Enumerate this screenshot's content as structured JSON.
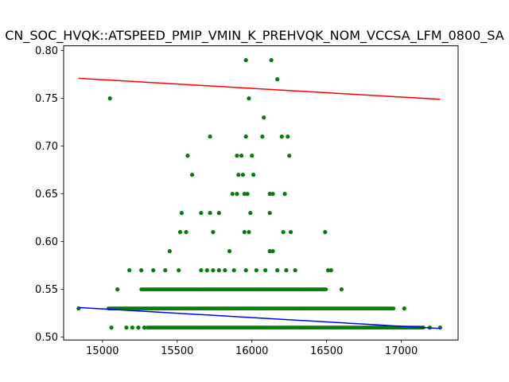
{
  "chart_data": {
    "type": "scatter",
    "title": "CN_SOC_HVQK::ATSPEED_PMIP_VMIN_K_PREHVQK_NOM_VCCSA_LFM_0800_SA",
    "xlabel": "",
    "ylabel": "",
    "xlim": [
      14740,
      17380
    ],
    "ylim": [
      0.497,
      0.805
    ],
    "xticks": [
      15000,
      15500,
      16000,
      16500,
      17000
    ],
    "yticks": [
      0.5,
      0.55,
      0.6,
      0.65,
      0.7,
      0.75,
      0.8
    ],
    "ytick_labels": [
      "0.50",
      "0.55",
      "0.60",
      "0.65",
      "0.70",
      "0.75",
      "0.80"
    ],
    "grid": false,
    "colors": {
      "points": "#008000",
      "upper_line": "#ff0000",
      "lower_line": "#0000ff"
    },
    "points": [
      [
        15960,
        0.79
      ],
      [
        16130,
        0.79
      ],
      [
        16170,
        0.77
      ],
      [
        15050,
        0.75
      ],
      [
        15980,
        0.75
      ],
      [
        16080,
        0.73
      ],
      [
        15720,
        0.71
      ],
      [
        15960,
        0.71
      ],
      [
        16070,
        0.71
      ],
      [
        16200,
        0.71
      ],
      [
        16240,
        0.71
      ],
      [
        15570,
        0.69
      ],
      [
        15900,
        0.69
      ],
      [
        15930,
        0.69
      ],
      [
        16000,
        0.69
      ],
      [
        16250,
        0.69
      ],
      [
        15600,
        0.67
      ],
      [
        15910,
        0.67
      ],
      [
        15940,
        0.67
      ],
      [
        16010,
        0.67
      ],
      [
        15870,
        0.65
      ],
      [
        15900,
        0.65
      ],
      [
        15950,
        0.65
      ],
      [
        15970,
        0.65
      ],
      [
        16120,
        0.65
      ],
      [
        16140,
        0.65
      ],
      [
        16220,
        0.65
      ],
      [
        15530,
        0.63
      ],
      [
        15660,
        0.63
      ],
      [
        15720,
        0.63
      ],
      [
        15780,
        0.63
      ],
      [
        15990,
        0.63
      ],
      [
        16120,
        0.63
      ],
      [
        15520,
        0.61
      ],
      [
        15560,
        0.61
      ],
      [
        15740,
        0.61
      ],
      [
        15950,
        0.61
      ],
      [
        15980,
        0.61
      ],
      [
        16210,
        0.61
      ],
      [
        16260,
        0.61
      ],
      [
        16490,
        0.61
      ],
      [
        15450,
        0.59
      ],
      [
        15850,
        0.59
      ],
      [
        16120,
        0.59
      ],
      [
        16140,
        0.59
      ],
      [
        15180,
        0.57
      ],
      [
        15260,
        0.57
      ],
      [
        15340,
        0.57
      ],
      [
        15420,
        0.57
      ],
      [
        15510,
        0.57
      ],
      [
        15660,
        0.57
      ],
      [
        15700,
        0.57
      ],
      [
        15740,
        0.57
      ],
      [
        15780,
        0.57
      ],
      [
        15820,
        0.57
      ],
      [
        15880,
        0.57
      ],
      [
        15960,
        0.57
      ],
      [
        16030,
        0.57
      ],
      [
        16090,
        0.57
      ],
      [
        16170,
        0.57
      ],
      [
        16230,
        0.57
      ],
      [
        16290,
        0.57
      ],
      [
        16510,
        0.57
      ],
      [
        16530,
        0.57
      ],
      [
        15100,
        0.55
      ],
      [
        16600,
        0.55
      ],
      [
        14840,
        0.53
      ],
      [
        17020,
        0.53
      ],
      [
        15060,
        0.51
      ],
      [
        15160,
        0.51
      ],
      [
        15200,
        0.51
      ],
      [
        15240,
        0.51
      ],
      [
        15280,
        0.51
      ],
      [
        17260,
        0.51
      ],
      [
        17190,
        0.51
      ]
    ],
    "point_bands": [
      {
        "y": 0.55,
        "x_range": [
          15260,
          16500
        ]
      },
      {
        "y": 0.53,
        "x_range": [
          15040,
          16950
        ]
      },
      {
        "y": 0.51,
        "x_range": [
          15300,
          17150
        ]
      }
    ],
    "lines": [
      {
        "name": "",
        "color": "#ff0000",
        "x": [
          14840,
          17260
        ],
        "y": [
          0.771,
          0.749
        ]
      },
      {
        "name": "",
        "color": "#0000ff",
        "x": [
          14840,
          17260
        ],
        "y": [
          0.531,
          0.509
        ]
      }
    ]
  }
}
